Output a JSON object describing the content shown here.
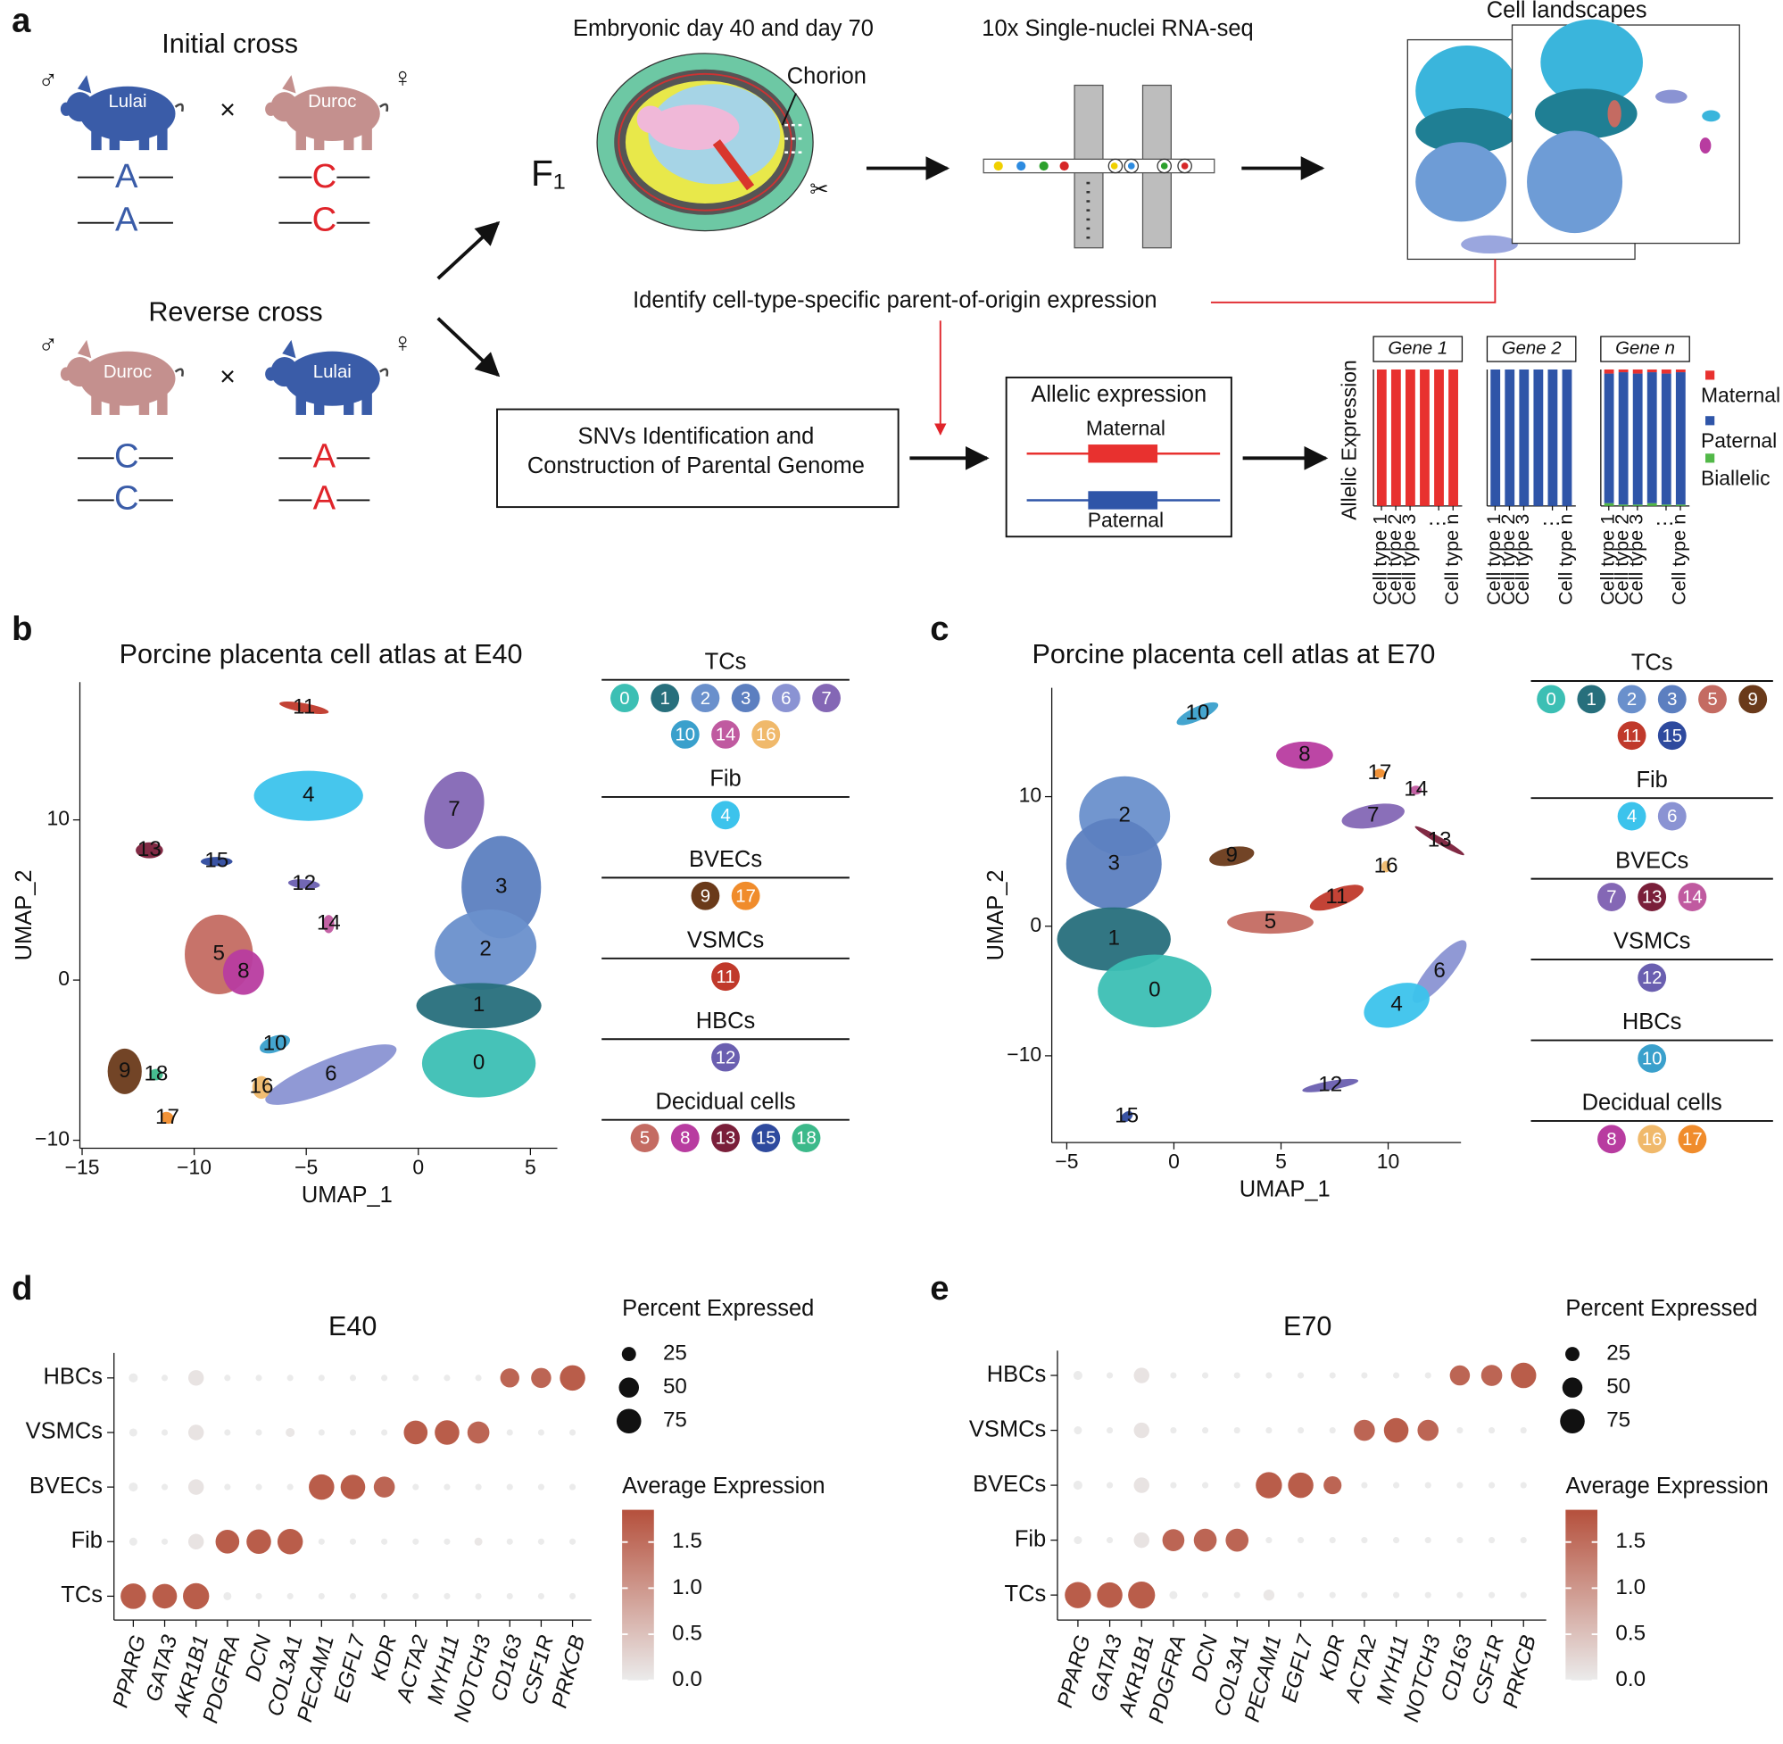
{
  "panel_labels": [
    "a",
    "b",
    "c",
    "d",
    "e"
  ],
  "a": {
    "initial_cross": "Initial cross",
    "reverse_cross": "Reverse cross",
    "male": "♂",
    "female": "♀",
    "times": "×",
    "lulai": "Lulai",
    "duroc": "Duroc",
    "allele_a": "A",
    "allele_c": "C",
    "f1": "F₁",
    "embryo_title": "Embryonic day 40 and day 70",
    "chorion": "Chorion",
    "seq_title": "10x Single-nuclei RNA-seq",
    "landscapes": "Cell landscapes",
    "identify": "Identify cell-type-specific parent-of-origin expression",
    "snv_1": "SNVs Identification and",
    "snv_2": "Construction of Parental Genome",
    "allelic_title": "Allelic expression",
    "maternal": "Maternal",
    "paternal": "Paternal",
    "y_label": "Allelic Expression",
    "cell_types": [
      "Cell type 1",
      "Cell type 2",
      "Cell type 3",
      "⋮",
      "Cell type n"
    ],
    "legend": [
      {
        "name": "Maternal",
        "color": "#e8312f"
      },
      {
        "name": "Paternal",
        "color": "#2f55a8"
      },
      {
        "name": "Biallelic",
        "color": "#52b848"
      }
    ],
    "genes": [
      {
        "name": "Gene 1",
        "maternal": [
          100,
          100,
          100,
          100,
          100,
          100
        ],
        "paternal": [
          0,
          0,
          0,
          0,
          0,
          0
        ],
        "biallelic": [
          0,
          0,
          0,
          0,
          0,
          0
        ]
      },
      {
        "name": "Gene 2",
        "maternal": [
          0,
          0,
          0,
          0,
          0,
          0
        ],
        "paternal": [
          100,
          100,
          100,
          100,
          100,
          100
        ],
        "biallelic": [
          0,
          0,
          0,
          0,
          0,
          0
        ]
      },
      {
        "name": "Gene n",
        "maternal": [
          3,
          2,
          3,
          2,
          3,
          2
        ],
        "paternal": [
          95,
          97,
          96,
          96,
          96,
          97
        ],
        "biallelic": [
          2,
          1,
          1,
          2,
          1,
          1
        ]
      }
    ]
  },
  "umaps": [
    {
      "title": "Porcine placenta cell atlas at E40",
      "xlabel": "UMAP_1",
      "ylabel": "UMAP_2",
      "xlim": [
        -15.1,
        6.2
      ],
      "ylim": [
        -10.5,
        18.6
      ],
      "xticks": [
        {
          "value": -15,
          "label": "−15"
        },
        {
          "value": -10,
          "label": "−10"
        },
        {
          "value": -5,
          "label": "−5"
        },
        0,
        5
      ],
      "yticks": [
        {
          "value": -10,
          "label": "−10"
        },
        0,
        10
      ],
      "clusters": [
        {
          "label": "11",
          "x": -5.1,
          "y": 17.0,
          "color": "#c0392b"
        },
        {
          "label": "4",
          "x": -4.9,
          "y": 11.5,
          "color": "#3cc3ec"
        },
        {
          "label": "13",
          "x": -12.0,
          "y": 8.1,
          "color": "#7a1f3a"
        },
        {
          "label": "15",
          "x": -9.0,
          "y": 7.4,
          "color": "#2e4a9e"
        },
        {
          "label": "12",
          "x": -5.1,
          "y": 6.0,
          "color": "#6a5fb0"
        },
        {
          "label": "14",
          "x": -4.0,
          "y": 3.5,
          "color": "#c05aa0"
        },
        {
          "label": "5",
          "x": -8.9,
          "y": 1.6,
          "color": "#c46b62"
        },
        {
          "label": "8",
          "x": -7.8,
          "y": 0.5,
          "color": "#b83ca0"
        },
        {
          "label": "7",
          "x": 1.6,
          "y": 10.6,
          "color": "#8467b5"
        },
        {
          "label": "3",
          "x": 3.7,
          "y": 5.8,
          "color": "#5c7fc0"
        },
        {
          "label": "2",
          "x": 3.0,
          "y": 1.9,
          "color": "#6a90cc"
        },
        {
          "label": "1",
          "x": 2.7,
          "y": -1.6,
          "color": "#276f7c"
        },
        {
          "label": "0",
          "x": 2.7,
          "y": -5.2,
          "color": "#3cbfb4"
        },
        {
          "label": "6",
          "x": -3.9,
          "y": -5.9,
          "color": "#8a93d3"
        },
        {
          "label": "10",
          "x": -6.4,
          "y": -4.0,
          "color": "#3aa0cc"
        },
        {
          "label": "16",
          "x": -7.0,
          "y": -6.7,
          "color": "#f0b96b"
        },
        {
          "label": "9",
          "x": -13.1,
          "y": -5.7,
          "color": "#6a3a1a"
        },
        {
          "label": "18",
          "x": -11.7,
          "y": -5.9,
          "color": "#3cb98a"
        },
        {
          "label": "17",
          "x": -11.2,
          "y": -8.6,
          "color": "#f08c2c"
        }
      ],
      "legend_groups": [
        {
          "title": "TCs",
          "clusters": [
            "0",
            "1",
            "2",
            "3",
            "6",
            "7",
            "10",
            "14",
            "16"
          ]
        },
        {
          "title": "Fib",
          "clusters": [
            "4"
          ]
        },
        {
          "title": "BVECs",
          "clusters": [
            "9",
            "17"
          ]
        },
        {
          "title": "VSMCs",
          "clusters": [
            "11"
          ]
        },
        {
          "title": "HBCs",
          "clusters": [
            "12"
          ]
        },
        {
          "title": "Decidual cells",
          "clusters": [
            "5",
            "8",
            "13",
            "15",
            "18"
          ]
        }
      ]
    },
    {
      "title": "Porcine placenta cell atlas at E70",
      "xlabel": "UMAP_1",
      "ylabel": "UMAP_2",
      "xlim": [
        -5.7,
        13.4
      ],
      "ylim": [
        -16.7,
        18.4
      ],
      "xticks": [
        {
          "value": -5,
          "label": "−5"
        },
        0,
        5,
        10
      ],
      "yticks": [
        {
          "value": -10,
          "label": "−10"
        },
        0,
        10
      ],
      "clusters": [
        {
          "label": "10",
          "x": 1.1,
          "y": 16.4,
          "color": "#3aa0cc"
        },
        {
          "label": "8",
          "x": 6.1,
          "y": 13.2,
          "color": "#b83ca0"
        },
        {
          "label": "17",
          "x": 9.6,
          "y": 11.8,
          "color": "#f08c2c"
        },
        {
          "label": "14",
          "x": 11.3,
          "y": 10.5,
          "color": "#c05aa0"
        },
        {
          "label": "7",
          "x": 9.3,
          "y": 8.5,
          "color": "#8467b5"
        },
        {
          "label": "13",
          "x": 12.4,
          "y": 6.6,
          "color": "#7a1f3a"
        },
        {
          "label": "16",
          "x": 9.9,
          "y": 4.6,
          "color": "#f0b96b"
        },
        {
          "label": "2",
          "x": -2.3,
          "y": 8.5,
          "color": "#6a90cc"
        },
        {
          "label": "3",
          "x": -2.8,
          "y": 4.8,
          "color": "#5c7fc0"
        },
        {
          "label": "9",
          "x": 2.7,
          "y": 5.4,
          "color": "#6a3a1a"
        },
        {
          "label": "11",
          "x": 7.6,
          "y": 2.2,
          "color": "#c0392b"
        },
        {
          "label": "5",
          "x": 4.5,
          "y": 0.3,
          "color": "#c46b62"
        },
        {
          "label": "1",
          "x": -2.8,
          "y": -1.0,
          "color": "#276f7c"
        },
        {
          "label": "0",
          "x": -0.9,
          "y": -5.0,
          "color": "#3cbfb4"
        },
        {
          "label": "6",
          "x": 12.4,
          "y": -3.5,
          "color": "#8a93d3"
        },
        {
          "label": "4",
          "x": 10.4,
          "y": -6.1,
          "color": "#3cc3ec"
        },
        {
          "label": "12",
          "x": 7.3,
          "y": -12.3,
          "color": "#6a5fb0"
        },
        {
          "label": "15",
          "x": -2.2,
          "y": -14.7,
          "color": "#2e4a9e"
        }
      ],
      "legend_groups": [
        {
          "title": "TCs",
          "clusters": [
            "0",
            "1",
            "2",
            "3",
            "5",
            "9",
            "11",
            "15"
          ]
        },
        {
          "title": "Fib",
          "clusters": [
            "4",
            "6"
          ]
        },
        {
          "title": "BVECs",
          "clusters": [
            "7",
            "13",
            "14"
          ]
        },
        {
          "title": "VSMCs",
          "clusters": [
            "12"
          ]
        },
        {
          "title": "HBCs",
          "clusters": [
            "10"
          ]
        },
        {
          "title": "Decidual cells",
          "clusters": [
            "8",
            "16",
            "17"
          ]
        }
      ]
    }
  ],
  "dotplots": [
    {
      "title": "E40",
      "genes": [
        "PPARG",
        "GATA3",
        "AKR1B1",
        "PDGFRA",
        "DCN",
        "COL3A1",
        "PECAM1",
        "EGFL7",
        "KDR",
        "ACTA2",
        "MYH11",
        "NOTCH3",
        "CD163",
        "CSF1R",
        "PRKCB"
      ],
      "cell_types": [
        "TCs",
        "Fib",
        "BVECs",
        "VSMCs",
        "HBCs"
      ],
      "pct": [
        [
          80,
          75,
          85,
          8,
          5,
          5,
          5,
          5,
          5,
          5,
          5,
          5,
          5,
          5,
          5
        ],
        [
          8,
          5,
          30,
          70,
          75,
          80,
          5,
          5,
          5,
          5,
          5,
          8,
          5,
          5,
          5
        ],
        [
          10,
          5,
          30,
          5,
          5,
          5,
          80,
          75,
          55,
          5,
          5,
          5,
          5,
          5,
          5
        ],
        [
          8,
          5,
          30,
          5,
          5,
          10,
          5,
          5,
          5,
          70,
          75,
          60,
          5,
          5,
          5
        ],
        [
          10,
          5,
          30,
          5,
          5,
          5,
          5,
          5,
          5,
          5,
          5,
          5,
          45,
          50,
          80
        ]
      ],
      "avg": [
        [
          1.7,
          1.7,
          1.7,
          0,
          0,
          0,
          0,
          0,
          0,
          0,
          0,
          0,
          0,
          0,
          0
        ],
        [
          0,
          0,
          0.1,
          1.7,
          1.7,
          1.7,
          0,
          0,
          0,
          0,
          0,
          0.05,
          0,
          0,
          0
        ],
        [
          0,
          0,
          0.1,
          0,
          0,
          0,
          1.7,
          1.7,
          1.6,
          0,
          0,
          0,
          0,
          0,
          0
        ],
        [
          0,
          0,
          0.1,
          0,
          0,
          0.05,
          0,
          0,
          0,
          1.7,
          1.7,
          1.6,
          0,
          0,
          0
        ],
        [
          0,
          0,
          0.1,
          0,
          0,
          0,
          0,
          0,
          0,
          0,
          0,
          0,
          1.6,
          1.6,
          1.7
        ]
      ],
      "size_legend_title": "Percent Expressed",
      "size_legend": [
        25,
        50,
        75
      ],
      "color_legend_title": "Average Expression",
      "clim": [
        0,
        1.85
      ],
      "cticks": [
        {
          "value": 0,
          "label": "0.0"
        },
        0.5,
        {
          "value": 1,
          "label": "1.0"
        },
        1.5
      ],
      "color_low": "#ebebeb",
      "color_high": "#b5503c"
    },
    {
      "title": "E70",
      "genes": [
        "PPARG",
        "GATA3",
        "AKR1B1",
        "PDGFRA",
        "DCN",
        "COL3A1",
        "PECAM1",
        "EGFL7",
        "KDR",
        "ACTA2",
        "MYH11",
        "NOTCH3",
        "CD163",
        "CSF1R",
        "PRKCB"
      ],
      "cell_types": [
        "TCs",
        "Fib",
        "BVECs",
        "VSMCs",
        "HBCs"
      ],
      "pct": [
        [
          85,
          80,
          90,
          8,
          5,
          5,
          15,
          5,
          5,
          5,
          5,
          5,
          5,
          5,
          5
        ],
        [
          8,
          5,
          30,
          60,
          65,
          65,
          5,
          5,
          5,
          5,
          5,
          5,
          5,
          5,
          5
        ],
        [
          10,
          5,
          30,
          5,
          5,
          5,
          85,
          80,
          40,
          5,
          5,
          5,
          5,
          5,
          5
        ],
        [
          8,
          5,
          30,
          5,
          5,
          5,
          5,
          5,
          5,
          55,
          75,
          55,
          5,
          5,
          5
        ],
        [
          10,
          5,
          30,
          5,
          5,
          5,
          5,
          5,
          5,
          5,
          5,
          5,
          50,
          55,
          80
        ]
      ],
      "avg": [
        [
          1.7,
          1.7,
          1.7,
          0,
          0,
          0,
          0.05,
          0,
          0,
          0,
          0,
          0,
          0,
          0,
          0
        ],
        [
          0,
          0,
          0.1,
          1.6,
          1.6,
          1.6,
          0,
          0,
          0,
          0,
          0,
          0,
          0,
          0,
          0
        ],
        [
          0,
          0,
          0.1,
          0,
          0,
          0,
          1.7,
          1.7,
          1.6,
          0,
          0,
          0,
          0,
          0,
          0
        ],
        [
          0,
          0,
          0.1,
          0,
          0,
          0,
          0,
          0,
          0,
          1.6,
          1.7,
          1.6,
          0,
          0,
          0
        ],
        [
          0,
          0,
          0.1,
          0,
          0,
          0,
          0,
          0,
          0,
          0,
          0,
          0,
          1.6,
          1.6,
          1.7
        ]
      ],
      "size_legend_title": "Percent Expressed",
      "size_legend": [
        25,
        50,
        75
      ],
      "color_legend_title": "Average Expression",
      "clim": [
        0,
        1.85
      ],
      "cticks": [
        {
          "value": 0,
          "label": "0.0"
        },
        0.5,
        {
          "value": 1,
          "label": "1.0"
        },
        1.5
      ],
      "color_low": "#ebebeb",
      "color_high": "#b5503c"
    }
  ]
}
